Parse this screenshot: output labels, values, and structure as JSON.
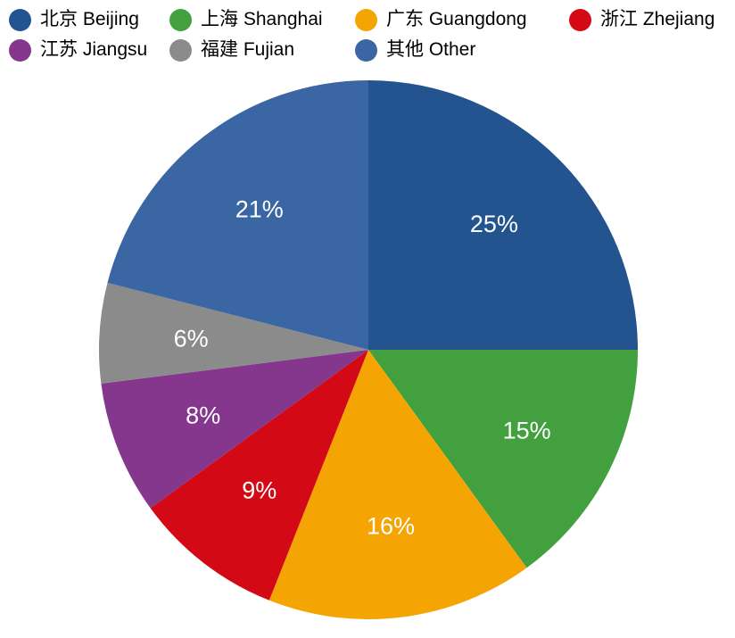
{
  "chart_data": {
    "type": "pie",
    "title": "",
    "legend_position": "top-left",
    "start_angle_deg": 0,
    "direction": "clockwise",
    "percent_label_color": "#FFFFFF",
    "background_color": "#FFFFFF",
    "slices": [
      {
        "id": "beijing",
        "label": "北京 Beijing",
        "label_zh": "北京",
        "label_en": "Beijing",
        "value_pct": 25,
        "percent_label": "25%",
        "color": "#23548F"
      },
      {
        "id": "shanghai",
        "label": "上海 Shanghai",
        "label_zh": "上海",
        "label_en": "Shanghai",
        "value_pct": 15,
        "percent_label": "15%",
        "color": "#43A03F"
      },
      {
        "id": "guangdong",
        "label": "广东 Guangdong",
        "label_zh": "广东",
        "label_en": "Guangdong",
        "value_pct": 16,
        "percent_label": "16%",
        "color": "#F4A504"
      },
      {
        "id": "zhejiang",
        "label": "浙江 Zhejiang",
        "label_zh": "浙江",
        "label_en": "Zhejiang",
        "value_pct": 9,
        "percent_label": "9%",
        "color": "#D30915"
      },
      {
        "id": "jiangsu",
        "label": "江苏 Jiangsu",
        "label_zh": "江苏",
        "label_en": "Jiangsu",
        "value_pct": 8,
        "percent_label": "8%",
        "color": "#84378C"
      },
      {
        "id": "fujian",
        "label": "福建 Fujian",
        "label_zh": "福建",
        "label_en": "Fujian",
        "value_pct": 6,
        "percent_label": "6%",
        "color": "#8B8B8B"
      },
      {
        "id": "other",
        "label": "其他 Other",
        "label_zh": "其他",
        "label_en": "Other",
        "value_pct": 21,
        "percent_label": "21%",
        "color": "#3A67A3"
      }
    ]
  }
}
